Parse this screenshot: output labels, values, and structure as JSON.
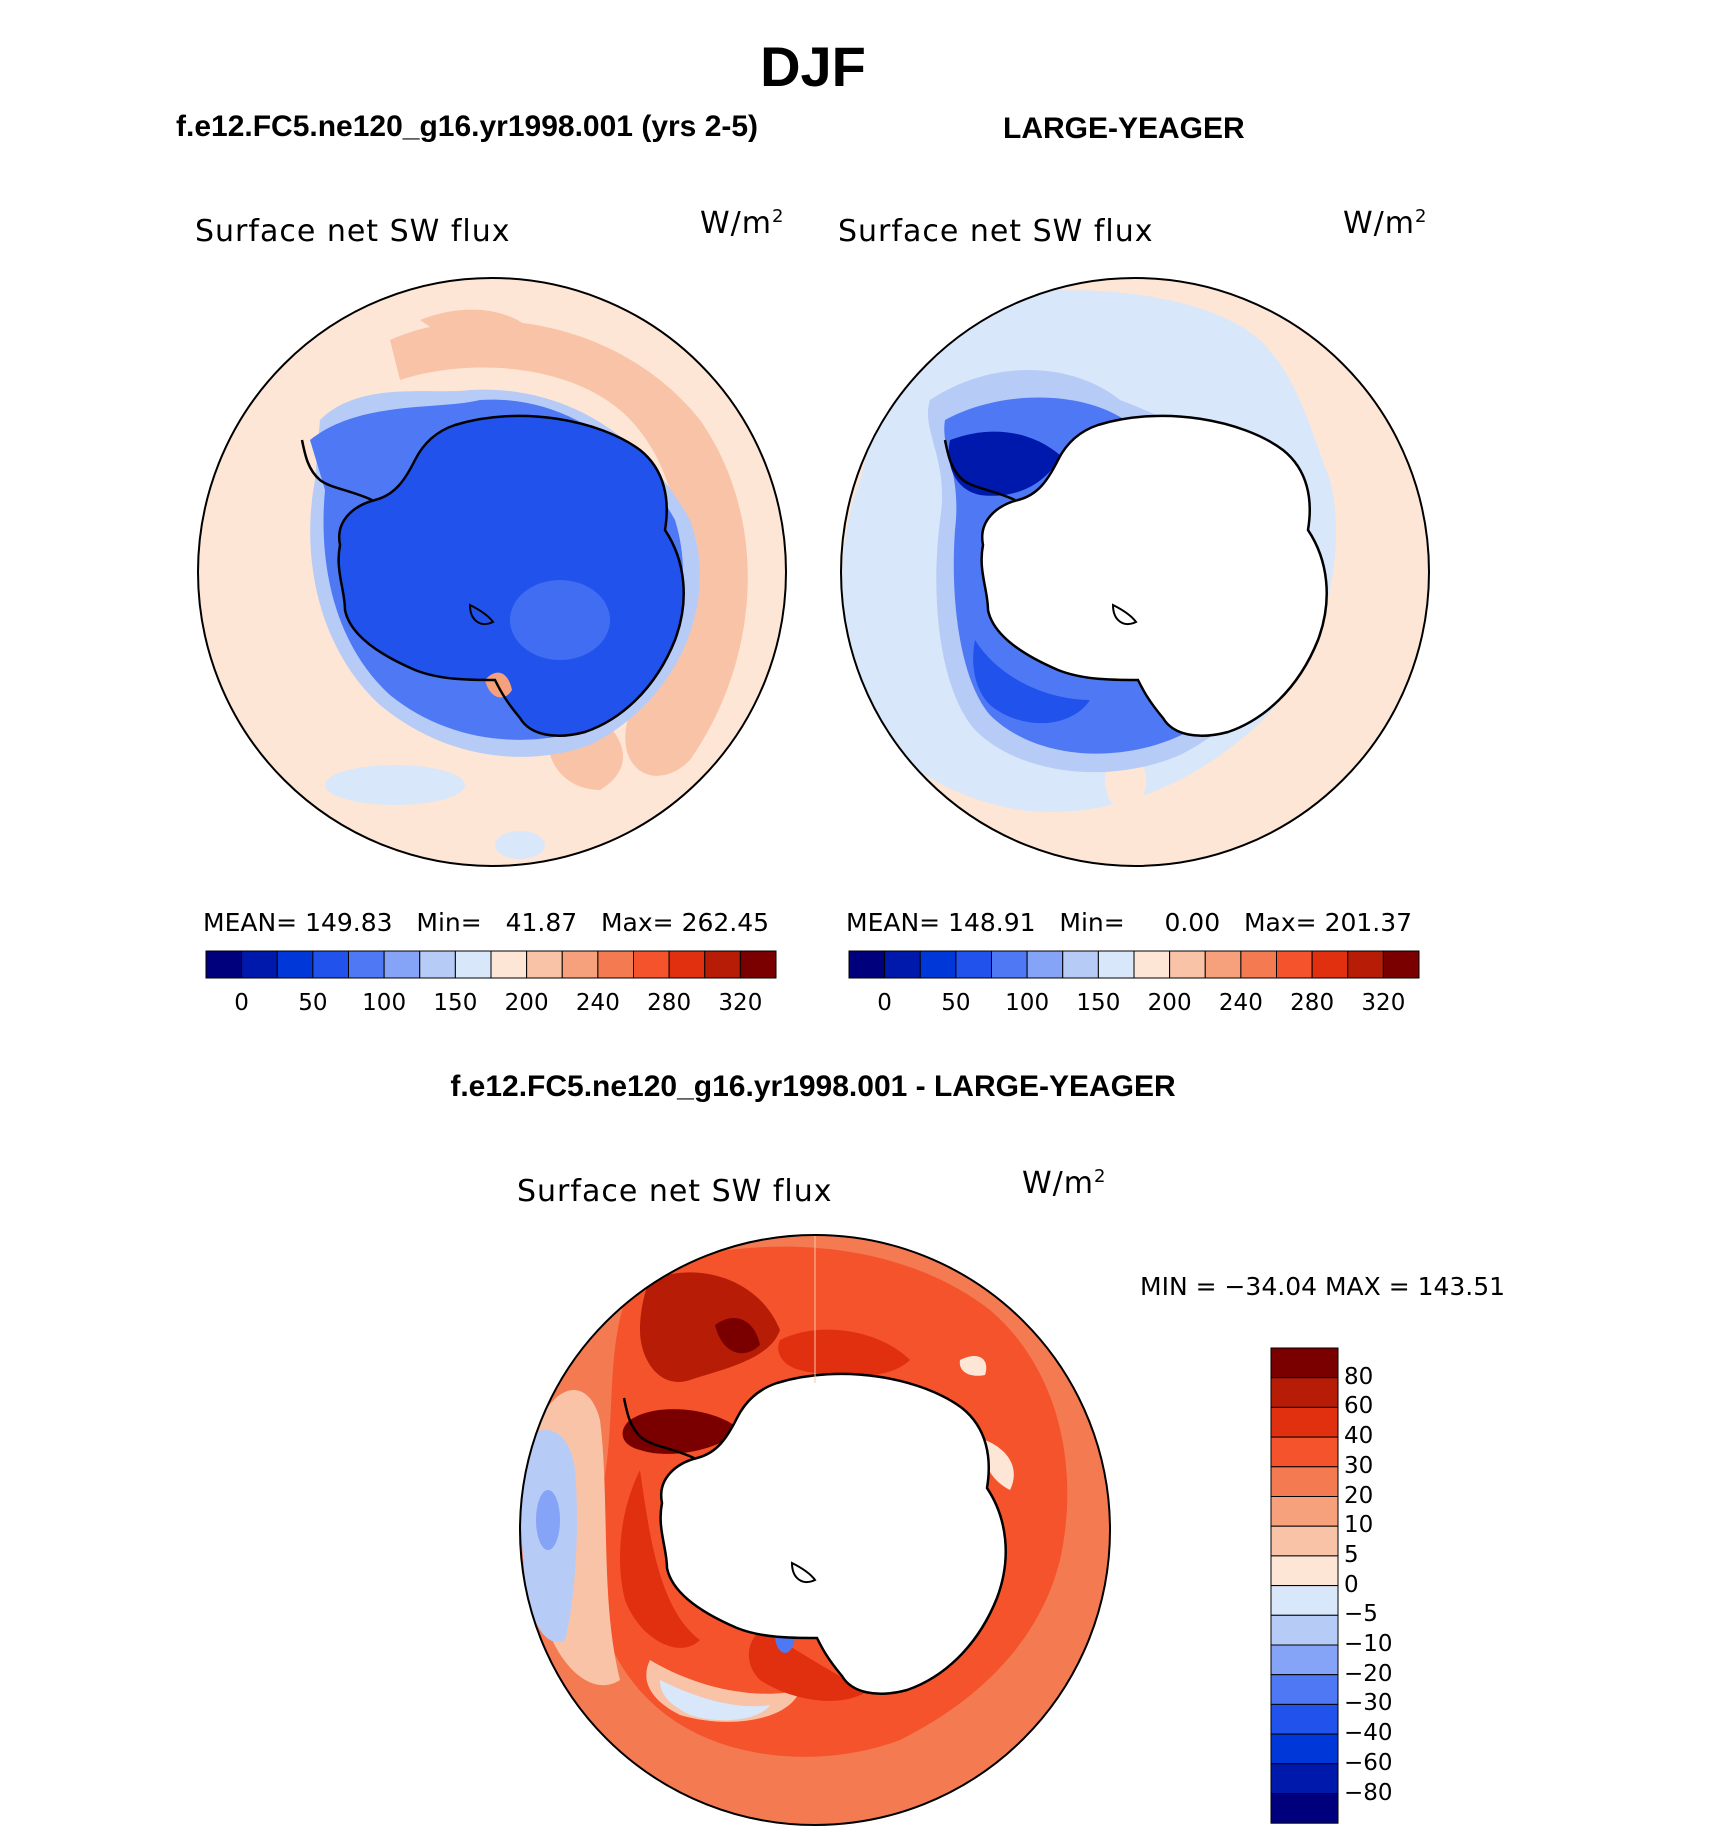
{
  "figure": {
    "season": "DJF",
    "left_case_title": "f.e12.FC5.ne120_g16.yr1998.001 (yrs 2-5)",
    "right_case_title": "LARGE-YEAGER",
    "diff_title": "f.e12.FC5.ne120_g16.yr1998.001 - LARGE-YEAGER"
  },
  "panels": [
    {
      "id": "model",
      "variable": "Surface net SW flux",
      "units_base": "W/m",
      "units_exp": "2",
      "stats": {
        "mean_label": "MEAN=",
        "mean": "149.83",
        "min_label": "Min=",
        "min": "41.87",
        "max_label": "Max=",
        "max": "262.45"
      }
    },
    {
      "id": "obs",
      "variable": "Surface net SW flux",
      "units_base": "W/m",
      "units_exp": "2",
      "stats": {
        "mean_label": "MEAN=",
        "mean": "148.91",
        "min_label": "Min=",
        "min": "0.00",
        "max_label": "Max=",
        "max": "201.37"
      }
    },
    {
      "id": "diff",
      "variable": "Surface net SW flux",
      "units_base": "W/m",
      "units_exp": "2",
      "stats_text": "MIN = −34.04 MAX = 143.51"
    }
  ],
  "colorbars": {
    "absolute": {
      "colors": [
        "#00007d",
        "#0019ad",
        "#0037d9",
        "#2152ec",
        "#4f79f4",
        "#85a3f7",
        "#b7cbf7",
        "#d8e7fa",
        "#fde6d6",
        "#f9c3a8",
        "#f7a07c",
        "#f47a52",
        "#f4532b",
        "#e1300f",
        "#b71c07",
        "#7a0000"
      ],
      "ticks": [
        "0",
        "50",
        "100",
        "150",
        "200",
        "240",
        "280",
        "320"
      ]
    },
    "difference": {
      "colors_top_to_bottom": [
        "#7a0000",
        "#b71c07",
        "#e1300f",
        "#f4532b",
        "#f47a52",
        "#f7a07c",
        "#f9c3a8",
        "#fde6d6",
        "#d8e7fa",
        "#b7cbf7",
        "#85a3f7",
        "#4f79f4",
        "#2152ec",
        "#0037d9",
        "#0019ad",
        "#00007d"
      ],
      "ticks": [
        "80",
        "60",
        "40",
        "30",
        "20",
        "10",
        "5",
        "0",
        "−5",
        "−10",
        "−20",
        "−30",
        "−40",
        "−60",
        "−80"
      ]
    }
  },
  "colors": {
    "land_outline": "#000000",
    "missing": "#ffffff"
  }
}
